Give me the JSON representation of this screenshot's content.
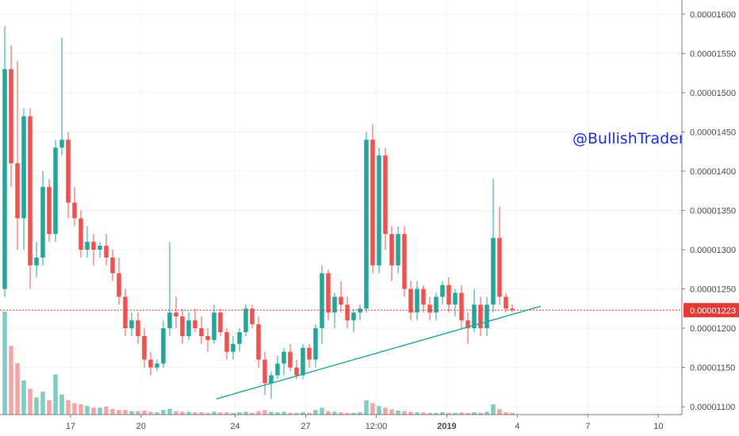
{
  "watermark": "@BullishTrader",
  "chart_data": {
    "type": "candlestick",
    "y_axis": {
      "ticks": [
        "0.00001600",
        "0.00001550",
        "0.00001500",
        "0.00001450",
        "0.00001400",
        "0.00001350",
        "0.00001300",
        "0.00001250",
        "0.00001200",
        "0.00001150",
        "0.00001100"
      ],
      "tick_values": [
        1600,
        1550,
        1500,
        1450,
        1400,
        1350,
        1300,
        1250,
        1200,
        1150,
        1100
      ],
      "range": [
        1090,
        1618
      ],
      "unit_scale": "1e-8"
    },
    "x_axis": {
      "ticks": [
        {
          "label": "17",
          "x": 0.1,
          "bold": false
        },
        {
          "label": "20",
          "x": 0.4,
          "bold": false
        },
        {
          "label": "24",
          "x": 0.8,
          "bold": false
        },
        {
          "label": "27",
          "x": 1.1,
          "bold": false
        },
        {
          "label": "12:00",
          "x": 1.4,
          "bold": false
        },
        {
          "label": "2019",
          "x": 1.7,
          "bold": true
        },
        {
          "label": "4",
          "x": 2.0,
          "bold": false
        },
        {
          "label": "7",
          "x": 2.3,
          "bold": false
        },
        {
          "label": "10",
          "x": 2.6,
          "bold": false
        }
      ],
      "range": [
        -0.2,
        2.7
      ]
    },
    "current_price": {
      "label": "0.00001223",
      "value": 1223
    },
    "trendline": {
      "points": [
        [
          0.72,
          1110
        ],
        [
          2.1,
          1228
        ]
      ]
    },
    "colors": {
      "up": "#26a69a",
      "down": "#ef5350",
      "up_volume": "#80cbc4",
      "down_volume": "#f3a5a3",
      "price_line": "#e53935",
      "trendline": "#26a69a"
    },
    "candles": [
      [
        1250,
        1585,
        1240,
        1530
      ],
      [
        1530,
        1560,
        1380,
        1410
      ],
      [
        1410,
        1540,
        1300,
        1340
      ],
      [
        1340,
        1480,
        1300,
        1470
      ],
      [
        1470,
        1480,
        1250,
        1280
      ],
      [
        1280,
        1310,
        1265,
        1290
      ],
      [
        1290,
        1400,
        1280,
        1380
      ],
      [
        1380,
        1390,
        1310,
        1320
      ],
      [
        1320,
        1440,
        1310,
        1430
      ],
      [
        1430,
        1570,
        1420,
        1440
      ],
      [
        1440,
        1450,
        1340,
        1360
      ],
      [
        1360,
        1380,
        1330,
        1340
      ],
      [
        1340,
        1350,
        1290,
        1300
      ],
      [
        1300,
        1330,
        1290,
        1310
      ],
      [
        1310,
        1320,
        1280,
        1300
      ],
      [
        1300,
        1310,
        1290,
        1305
      ],
      [
        1305,
        1320,
        1280,
        1290
      ],
      [
        1290,
        1300,
        1260,
        1270
      ],
      [
        1270,
        1290,
        1230,
        1240
      ],
      [
        1240,
        1250,
        1190,
        1200
      ],
      [
        1200,
        1220,
        1190,
        1210
      ],
      [
        1210,
        1220,
        1180,
        1190
      ],
      [
        1190,
        1200,
        1150,
        1160
      ],
      [
        1160,
        1170,
        1140,
        1150
      ],
      [
        1150,
        1160,
        1145,
        1155
      ],
      [
        1155,
        1210,
        1150,
        1200
      ],
      [
        1200,
        1310,
        1190,
        1220
      ],
      [
        1220,
        1240,
        1200,
        1215
      ],
      [
        1215,
        1225,
        1180,
        1190
      ],
      [
        1190,
        1220,
        1185,
        1210
      ],
      [
        1210,
        1225,
        1195,
        1200
      ],
      [
        1200,
        1215,
        1180,
        1190
      ],
      [
        1190,
        1200,
        1170,
        1185
      ],
      [
        1185,
        1230,
        1180,
        1220
      ],
      [
        1220,
        1225,
        1190,
        1195
      ],
      [
        1195,
        1200,
        1160,
        1170
      ],
      [
        1170,
        1190,
        1160,
        1180
      ],
      [
        1180,
        1200,
        1170,
        1195
      ],
      [
        1195,
        1230,
        1190,
        1225
      ],
      [
        1225,
        1230,
        1200,
        1205
      ],
      [
        1205,
        1215,
        1150,
        1160
      ],
      [
        1160,
        1170,
        1115,
        1130
      ],
      [
        1130,
        1145,
        1110,
        1140
      ],
      [
        1140,
        1165,
        1135,
        1155
      ],
      [
        1155,
        1175,
        1140,
        1170
      ],
      [
        1170,
        1180,
        1145,
        1150
      ],
      [
        1150,
        1160,
        1135,
        1140
      ],
      [
        1140,
        1180,
        1135,
        1175
      ],
      [
        1175,
        1180,
        1150,
        1160
      ],
      [
        1160,
        1205,
        1150,
        1200
      ],
      [
        1200,
        1280,
        1180,
        1270
      ],
      [
        1270,
        1275,
        1210,
        1220
      ],
      [
        1220,
        1245,
        1200,
        1240
      ],
      [
        1240,
        1260,
        1220,
        1230
      ],
      [
        1230,
        1240,
        1200,
        1210
      ],
      [
        1210,
        1225,
        1195,
        1220
      ],
      [
        1220,
        1230,
        1210,
        1225
      ],
      [
        1225,
        1450,
        1220,
        1440
      ],
      [
        1440,
        1460,
        1270,
        1280
      ],
      [
        1280,
        1430,
        1270,
        1420
      ],
      [
        1420,
        1430,
        1300,
        1320
      ],
      [
        1320,
        1330,
        1260,
        1280
      ],
      [
        1280,
        1330,
        1270,
        1320
      ],
      [
        1320,
        1330,
        1240,
        1250
      ],
      [
        1250,
        1260,
        1210,
        1220
      ],
      [
        1220,
        1260,
        1210,
        1250
      ],
      [
        1250,
        1255,
        1220,
        1230
      ],
      [
        1230,
        1240,
        1210,
        1220
      ],
      [
        1220,
        1245,
        1210,
        1240
      ],
      [
        1240,
        1260,
        1230,
        1255
      ],
      [
        1255,
        1265,
        1220,
        1230
      ],
      [
        1230,
        1250,
        1215,
        1245
      ],
      [
        1245,
        1255,
        1200,
        1210
      ],
      [
        1210,
        1220,
        1180,
        1200
      ],
      [
        1200,
        1250,
        1195,
        1230
      ],
      [
        1230,
        1240,
        1190,
        1200
      ],
      [
        1200,
        1240,
        1190,
        1230
      ],
      [
        1230,
        1390,
        1220,
        1315
      ],
      [
        1315,
        1355,
        1230,
        1240
      ],
      [
        1240,
        1245,
        1220,
        1225
      ],
      [
        1225,
        1230,
        1220,
        1223
      ]
    ],
    "volumes": [
      180,
      120,
      90,
      60,
      45,
      30,
      40,
      25,
      70,
      35,
      25,
      20,
      18,
      15,
      12,
      12,
      14,
      10,
      8,
      8,
      6,
      6,
      7,
      5,
      4,
      8,
      10,
      6,
      5,
      5,
      4,
      4,
      3,
      5,
      4,
      4,
      3,
      4,
      5,
      3,
      6,
      8,
      5,
      4,
      5,
      3,
      3,
      4,
      3,
      8,
      12,
      6,
      5,
      4,
      3,
      3,
      4,
      25,
      20,
      15,
      12,
      9,
      7,
      6,
      5,
      4,
      4,
      3,
      3,
      4,
      3,
      3,
      4,
      3,
      4,
      3,
      5,
      18,
      10,
      4,
      3
    ]
  }
}
